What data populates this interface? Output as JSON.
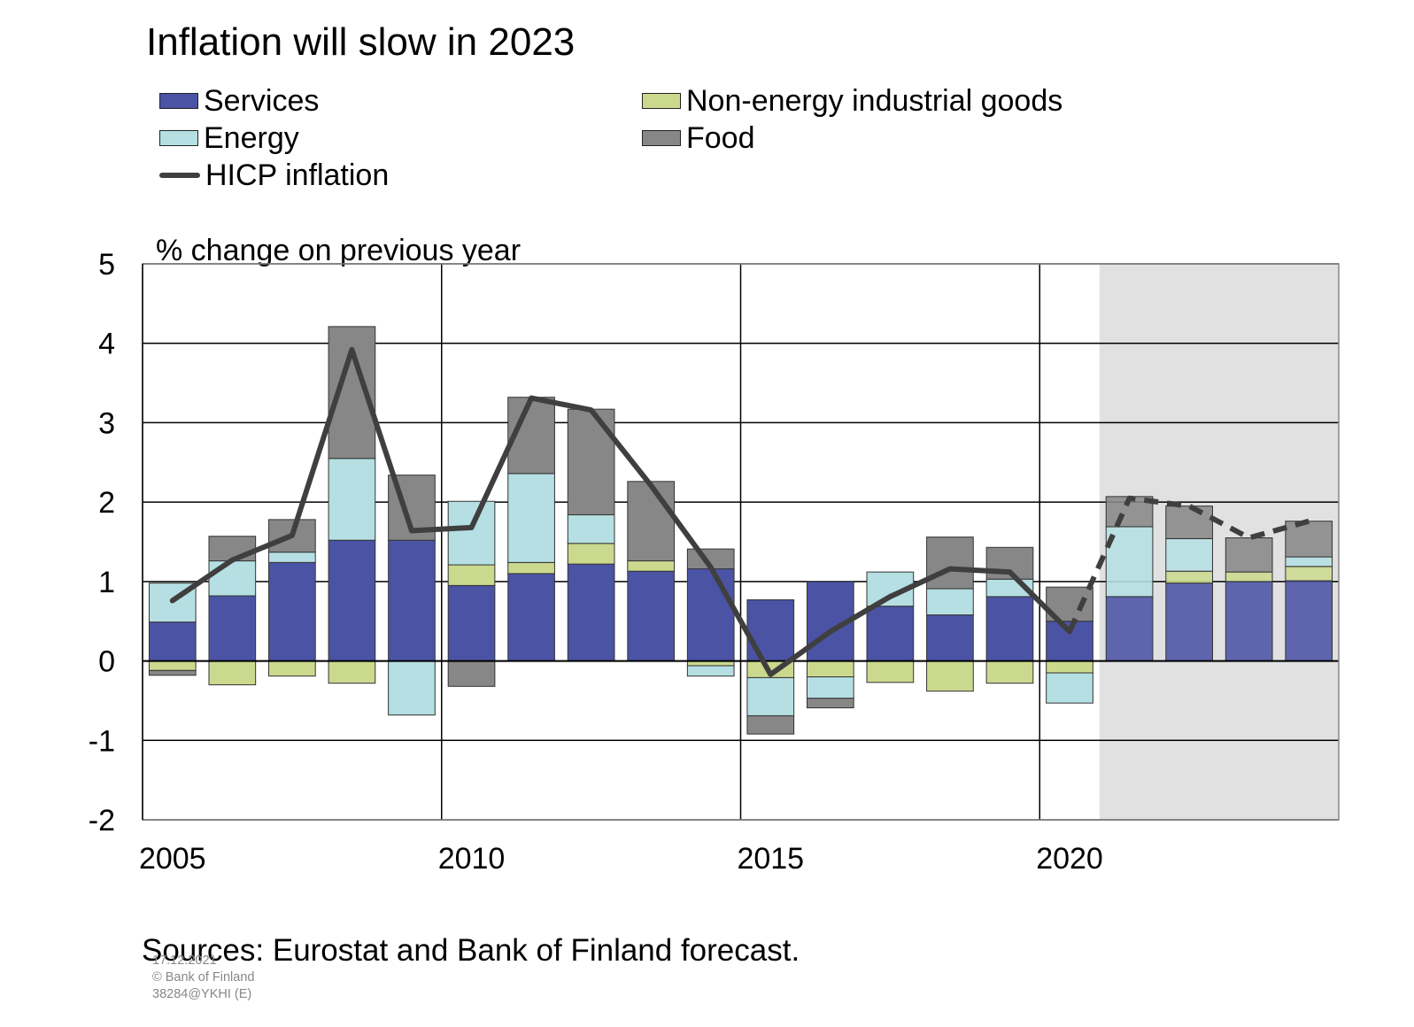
{
  "chart_data": {
    "type": "bar",
    "title": "Inflation will slow in 2023",
    "ylabel": "% change on previous year",
    "ylim": [
      -2,
      5
    ],
    "yticks": [
      "5",
      "4",
      "3",
      "2",
      "1",
      "0",
      "-1",
      "-2"
    ],
    "xtick_labels": [
      "2005",
      "2010",
      "2015",
      "2020"
    ],
    "grid": true,
    "legend_position": "top",
    "forecast_years": [
      2021,
      2022,
      2023,
      2024
    ],
    "years": [
      2005,
      2006,
      2007,
      2008,
      2009,
      2010,
      2011,
      2012,
      2013,
      2014,
      2015,
      2016,
      2017,
      2018,
      2019,
      2020,
      2021,
      2022,
      2023,
      2024
    ],
    "series": [
      {
        "key": "services",
        "name": "Services",
        "kind": "bar",
        "color": "#4b53a5",
        "values": [
          0.49,
          0.82,
          1.24,
          1.52,
          1.52,
          0.95,
          1.1,
          1.22,
          1.13,
          1.16,
          0.77,
          1.0,
          0.69,
          0.58,
          0.81,
          0.5,
          0.81,
          0.98,
          1.0,
          1.01
        ]
      },
      {
        "key": "neig",
        "name": "Non-energy industrial goods",
        "kind": "bar",
        "color": "#cbd98e",
        "values": [
          -0.12,
          -0.3,
          -0.19,
          -0.28,
          0.0,
          0.26,
          0.14,
          0.26,
          0.13,
          -0.06,
          -0.21,
          -0.2,
          -0.27,
          -0.38,
          -0.28,
          -0.15,
          0.0,
          0.15,
          0.12,
          0.18
        ]
      },
      {
        "key": "energy",
        "name": "Energy",
        "kind": "bar",
        "color": "#b5dfe2",
        "values": [
          0.49,
          0.44,
          0.13,
          1.03,
          -0.68,
          0.8,
          1.12,
          0.36,
          0.0,
          -0.13,
          -0.48,
          -0.27,
          0.43,
          0.33,
          0.22,
          -0.38,
          0.88,
          0.41,
          0.0,
          0.12
        ]
      },
      {
        "key": "food",
        "name": "Food",
        "kind": "bar",
        "color": "#878787",
        "values": [
          -0.06,
          0.31,
          0.41,
          1.66,
          0.82,
          -0.32,
          0.96,
          1.33,
          1.0,
          0.25,
          -0.23,
          -0.12,
          0.0,
          0.65,
          0.4,
          0.43,
          0.38,
          0.41,
          0.43,
          0.45
        ]
      },
      {
        "key": "hicp",
        "name": "HICP inflation",
        "kind": "line",
        "color": "#3f3f3f",
        "values": [
          0.76,
          1.27,
          1.58,
          3.92,
          1.64,
          1.68,
          3.31,
          3.16,
          2.21,
          1.18,
          -0.17,
          0.37,
          0.81,
          1.16,
          1.12,
          0.37,
          2.05,
          1.95,
          1.55,
          1.76
        ]
      }
    ]
  },
  "legend": [
    {
      "key": "services",
      "label": "Services"
    },
    {
      "key": "neig",
      "label": "Non-energy industrial goods"
    },
    {
      "key": "energy",
      "label": "Energy"
    },
    {
      "key": "food",
      "label": "Food"
    },
    {
      "key": "hicp",
      "label": "HICP inflation"
    }
  ],
  "footer": {
    "sources": "Sources: Eurostat and Bank of Finland forecast.",
    "date": "17.12.2021",
    "copyright": "© Bank of Finland",
    "code": "38284@YKHI  (E)"
  }
}
